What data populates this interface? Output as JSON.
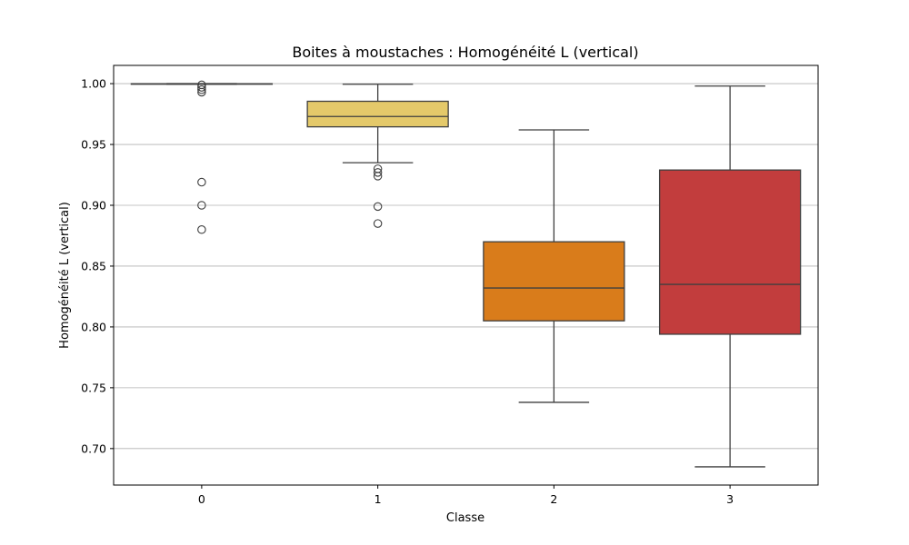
{
  "chart_data": {
    "type": "boxplot",
    "title": "Boites à moustaches : Homogénéité L (vertical)",
    "xlabel": "Classe",
    "ylabel": "Homogénéité L (vertical)",
    "ylim": [
      0.67,
      1.015
    ],
    "yticks": [
      0.7,
      0.75,
      0.8,
      0.85,
      0.9,
      0.95,
      1.0
    ],
    "ytick_labels": [
      "0.70",
      "0.75",
      "0.80",
      "0.85",
      "0.90",
      "0.95",
      "1.00"
    ],
    "grid": "horizontal",
    "categories": [
      "0",
      "1",
      "2",
      "3"
    ],
    "colors": [
      "#e0a020",
      "#e4c96a",
      "#d97c1b",
      "#c23d3d"
    ],
    "boxes": [
      {
        "category": "0",
        "whisker_low": 0.9995,
        "q1": 0.9996,
        "median": 0.9998,
        "q3": 0.9999,
        "whisker_high": 1.0,
        "outliers": [
          0.999,
          0.997,
          0.995,
          0.993,
          0.919,
          0.9,
          0.88
        ]
      },
      {
        "category": "1",
        "whisker_low": 0.935,
        "q1": 0.9645,
        "median": 0.973,
        "q3": 0.9855,
        "whisker_high": 0.9995,
        "outliers": [
          0.93,
          0.927,
          0.924,
          0.899,
          0.885
        ]
      },
      {
        "category": "2",
        "whisker_low": 0.738,
        "q1": 0.805,
        "median": 0.832,
        "q3": 0.87,
        "whisker_high": 0.962,
        "outliers": []
      },
      {
        "category": "3",
        "whisker_low": 0.685,
        "q1": 0.794,
        "median": 0.835,
        "q3": 0.929,
        "whisker_high": 0.998,
        "outliers": []
      }
    ]
  }
}
